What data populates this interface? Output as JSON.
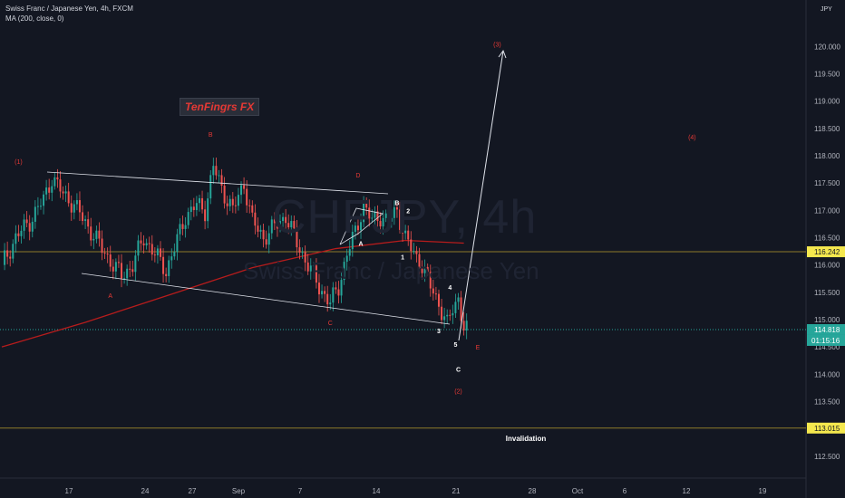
{
  "header": {
    "symbol_line": "Swiss Franc / Japanese Yen, 4h, FXCM",
    "indicator_line": "MA (200, close, 0)",
    "currency": "JPY"
  },
  "watermark": {
    "symbol": "CHFJPY, 4h",
    "name": "Swiss Franc / Japanese Yen"
  },
  "brand": {
    "text": "TenFingrs FX"
  },
  "colors": {
    "bg": "#131722",
    "up": "#26a69a",
    "down": "#ef5350",
    "ma": "#b71c1c",
    "wave_red": "#e53935",
    "line": "#e0e3eb",
    "level": "#8d7a2a"
  },
  "chart_data": {
    "type": "line",
    "title": "Swiss Franc / Japanese Yen, 4h, FXCM",
    "x_ticks": [
      "17",
      "24",
      "27",
      "Sep",
      "7",
      "14",
      "21",
      "28",
      "Oct",
      "6",
      "12",
      "19"
    ],
    "y_ticks": [
      "112.500",
      "113.000",
      "113.500",
      "114.000",
      "114.500",
      "115.000",
      "115.500",
      "116.000",
      "116.500",
      "117.000",
      "117.500",
      "118.000",
      "118.500",
      "119.000",
      "119.500",
      "120.000"
    ],
    "ylim": [
      112.1,
      120.8
    ],
    "price_path": [
      {
        "x": 0,
        "y": 116.0
      },
      {
        "x": 5,
        "y": 116.5
      },
      {
        "x": 10,
        "y": 116.8
      },
      {
        "x": 15,
        "y": 117.2
      },
      {
        "x": 18,
        "y": 117.6
      },
      {
        "x": 22,
        "y": 117.3
      },
      {
        "x": 26,
        "y": 117.1
      },
      {
        "x": 31,
        "y": 116.7
      },
      {
        "x": 36,
        "y": 116.3
      },
      {
        "x": 40,
        "y": 116.0
      },
      {
        "x": 43,
        "y": 115.8
      },
      {
        "x": 47,
        "y": 116.0
      },
      {
        "x": 51,
        "y": 116.5
      },
      {
        "x": 55,
        "y": 116.2
      },
      {
        "x": 59,
        "y": 115.9
      },
      {
        "x": 62,
        "y": 116.3
      },
      {
        "x": 66,
        "y": 116.9
      },
      {
        "x": 70,
        "y": 117.1
      },
      {
        "x": 73,
        "y": 117.0
      },
      {
        "x": 76,
        "y": 117.8
      },
      {
        "x": 79,
        "y": 117.4
      },
      {
        "x": 83,
        "y": 117.0
      },
      {
        "x": 87,
        "y": 117.5
      },
      {
        "x": 90,
        "y": 116.8
      },
      {
        "x": 94,
        "y": 116.5
      },
      {
        "x": 98,
        "y": 116.7
      },
      {
        "x": 102,
        "y": 116.9
      },
      {
        "x": 106,
        "y": 116.4
      },
      {
        "x": 110,
        "y": 116.0
      },
      {
        "x": 114,
        "y": 115.6
      },
      {
        "x": 118,
        "y": 115.3
      },
      {
        "x": 121,
        "y": 115.6
      },
      {
        "x": 124,
        "y": 116.2
      },
      {
        "x": 127,
        "y": 116.6
      },
      {
        "x": 130,
        "y": 117.1
      },
      {
        "x": 133,
        "y": 116.8
      },
      {
        "x": 136,
        "y": 116.9
      },
      {
        "x": 139,
        "y": 116.8
      },
      {
        "x": 142,
        "y": 117.0
      },
      {
        "x": 145,
        "y": 116.5
      },
      {
        "x": 148,
        "y": 116.2
      },
      {
        "x": 151,
        "y": 116.0
      },
      {
        "x": 154,
        "y": 115.6
      },
      {
        "x": 157,
        "y": 115.3
      },
      {
        "x": 160,
        "y": 114.9
      },
      {
        "x": 162,
        "y": 115.2
      },
      {
        "x": 164,
        "y": 115.4
      },
      {
        "x": 166,
        "y": 114.85
      },
      {
        "x": 167,
        "y": 114.8
      }
    ],
    "ma_path": [
      {
        "x": 0,
        "y": 114.5
      },
      {
        "x": 30,
        "y": 114.95
      },
      {
        "x": 60,
        "y": 115.45
      },
      {
        "x": 90,
        "y": 115.95
      },
      {
        "x": 120,
        "y": 116.3
      },
      {
        "x": 145,
        "y": 116.45
      },
      {
        "x": 166,
        "y": 116.4
      }
    ],
    "last_price": "114.818",
    "countdown": "01:15:16",
    "levels": [
      {
        "label": "116.242",
        "value": 116.242
      },
      {
        "label": "113.015",
        "value": 113.015
      }
    ],
    "annotations": {
      "wave_labels": [
        {
          "text": "(1)",
          "x": 6,
          "y": 117.85,
          "color": "red"
        },
        {
          "text": "A",
          "x": 39,
          "y": 115.4,
          "color": "red"
        },
        {
          "text": "B",
          "x": 75,
          "y": 118.35,
          "color": "red"
        },
        {
          "text": "C",
          "x": 118,
          "y": 114.9,
          "color": "red"
        },
        {
          "text": "D",
          "x": 128,
          "y": 117.6,
          "color": "red"
        },
        {
          "text": "E",
          "x": 171,
          "y": 114.45,
          "color": "red"
        },
        {
          "text": "(2)",
          "x": 164,
          "y": 113.65,
          "color": "red"
        },
        {
          "text": "(3)",
          "x": 178,
          "y": 120.0,
          "color": "red"
        },
        {
          "text": "(4)",
          "x": 248,
          "y": 118.3,
          "color": "red"
        },
        {
          "text": "A",
          "x": 129,
          "y": 116.35,
          "color": "white"
        },
        {
          "text": "B",
          "x": 142,
          "y": 117.1,
          "color": "white"
        },
        {
          "text": "1",
          "x": 144,
          "y": 116.1,
          "color": "white"
        },
        {
          "text": "2",
          "x": 146,
          "y": 116.95,
          "color": "white"
        },
        {
          "text": "3",
          "x": 157,
          "y": 114.75,
          "color": "white"
        },
        {
          "text": "4",
          "x": 161,
          "y": 115.55,
          "color": "white"
        },
        {
          "text": "5",
          "x": 163,
          "y": 114.5,
          "color": "white"
        },
        {
          "text": "C",
          "x": 164,
          "y": 114.05,
          "color": "white"
        }
      ],
      "invalidation_text": "Invalidation"
    }
  }
}
